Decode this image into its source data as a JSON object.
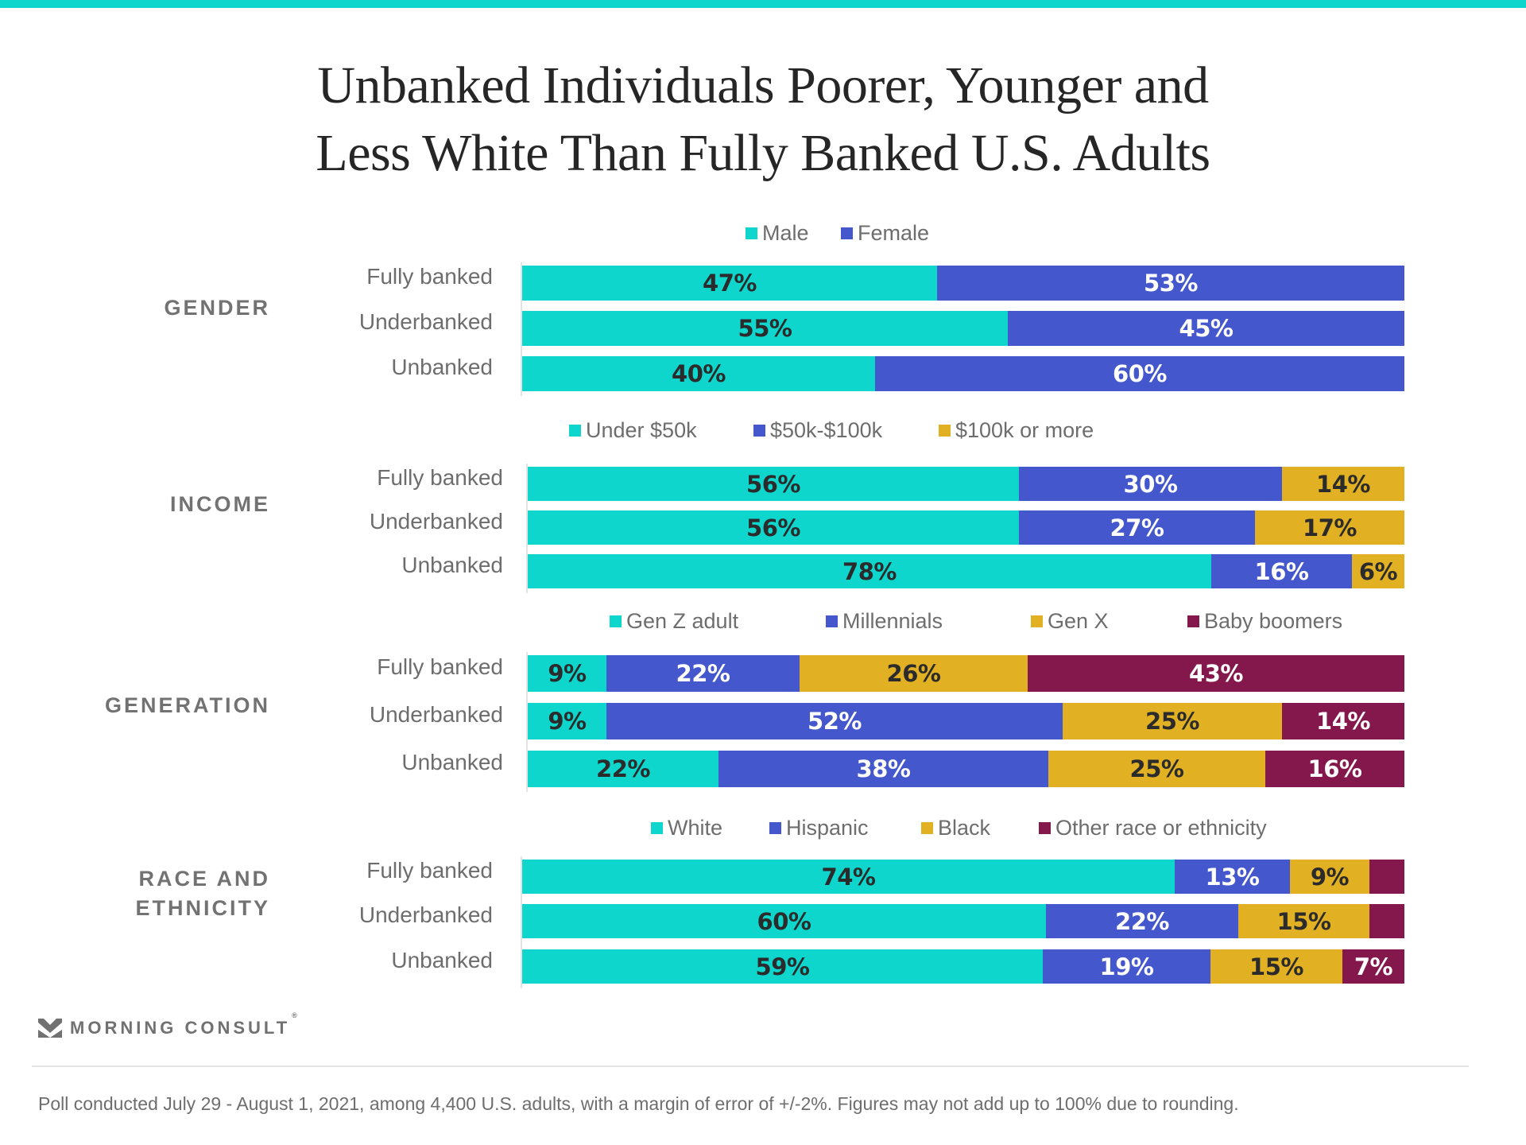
{
  "title": {
    "line1": "Unbanked Individuals Poorer, Younger and",
    "line2": "Less White Than Fully Banked U.S. Adults"
  },
  "colors": {
    "teal": "#0fd6cc",
    "blue": "#4557cd",
    "gold": "#e2b123",
    "maroon": "#84174b",
    "label_dark": "#2b2b2b",
    "label_light": "#ffffff"
  },
  "chart_data": [
    {
      "type": "bar",
      "orientation": "horizontal",
      "stacked": true,
      "title": "GENDER",
      "categories": [
        "Fully banked",
        "Underbanked",
        "Unbanked"
      ],
      "series": [
        {
          "name": "Male",
          "color": "#0fd6cc",
          "values": [
            47,
            55,
            40
          ],
          "labels": [
            "47%",
            "55%",
            "40%"
          ]
        },
        {
          "name": "Female",
          "color": "#4557cd",
          "values": [
            53,
            45,
            60
          ],
          "labels": [
            "53%",
            "45%",
            "60%"
          ]
        }
      ],
      "xlim": [
        0,
        100
      ],
      "legend": "top",
      "grid": false
    },
    {
      "type": "bar",
      "orientation": "horizontal",
      "stacked": true,
      "title": "INCOME",
      "categories": [
        "Fully banked",
        "Underbanked",
        "Unbanked"
      ],
      "series": [
        {
          "name": "Under $50k",
          "color": "#0fd6cc",
          "values": [
            56,
            56,
            78
          ],
          "labels": [
            "56%",
            "56%",
            "78%"
          ]
        },
        {
          "name": "$50k-$100k",
          "color": "#4557cd",
          "values": [
            30,
            27,
            16
          ],
          "labels": [
            "30%",
            "27%",
            "16%"
          ]
        },
        {
          "name": "$100k or more",
          "color": "#e2b123",
          "values": [
            14,
            17,
            6
          ],
          "labels": [
            "14%",
            "17%",
            "6%"
          ]
        }
      ],
      "xlim": [
        0,
        100
      ],
      "legend": "top",
      "grid": false
    },
    {
      "type": "bar",
      "orientation": "horizontal",
      "stacked": true,
      "title": "GENERATION",
      "categories": [
        "Fully banked",
        "Underbanked",
        "Unbanked"
      ],
      "series": [
        {
          "name": "Gen Z adult",
          "color": "#0fd6cc",
          "values": [
            9,
            9,
            22
          ],
          "labels": [
            "9%",
            "9%",
            "22%"
          ]
        },
        {
          "name": "Millennials",
          "color": "#4557cd",
          "values": [
            22,
            52,
            38
          ],
          "labels": [
            "22%",
            "52%",
            "38%"
          ]
        },
        {
          "name": "Gen X",
          "color": "#e2b123",
          "values": [
            26,
            25,
            25
          ],
          "labels": [
            "26%",
            "25%",
            "25%"
          ]
        },
        {
          "name": "Baby boomers",
          "color": "#84174b",
          "values": [
            43,
            14,
            16
          ],
          "labels": [
            "43%",
            "14%",
            "16%"
          ]
        }
      ],
      "xlim": [
        0,
        100
      ],
      "legend": "top",
      "grid": false
    },
    {
      "type": "bar",
      "orientation": "horizontal",
      "stacked": true,
      "title": "RACE AND ETHNICITY",
      "categories": [
        "Fully banked",
        "Underbanked",
        "Unbanked"
      ],
      "series": [
        {
          "name": "White",
          "color": "#0fd6cc",
          "values": [
            74,
            60,
            59
          ],
          "labels": [
            "74%",
            "60%",
            "59%"
          ]
        },
        {
          "name": "Hispanic",
          "color": "#4557cd",
          "values": [
            13,
            22,
            19
          ],
          "labels": [
            "13%",
            "22%",
            "19%"
          ]
        },
        {
          "name": "Black",
          "color": "#e2b123",
          "values": [
            9,
            15,
            15
          ],
          "labels": [
            "9%",
            "15%",
            "15%"
          ]
        },
        {
          "name": "Other race or ethnicity",
          "color": "#84174b",
          "values": [
            4,
            4,
            7
          ],
          "labels": [
            "",
            "",
            "7%"
          ]
        }
      ],
      "xlim": [
        0,
        100
      ],
      "legend": "top",
      "grid": false
    }
  ],
  "sections": [
    {
      "label_lines": [
        "GENDER"
      ]
    },
    {
      "label_lines": [
        "INCOME"
      ]
    },
    {
      "label_lines": [
        "GENERATION"
      ]
    },
    {
      "label_lines": [
        "RACE AND",
        "ETHNICITY"
      ]
    }
  ],
  "brand": {
    "logo_icon": "morning-consult-chevron-icon",
    "name": "MORNING CONSULT",
    "registered": "®"
  },
  "footnote": "Poll conducted July 29 - August 1, 2021, among 4,400 U.S. adults, with a margin of error of +/-2%. Figures may not add up to 100% due to rounding."
}
